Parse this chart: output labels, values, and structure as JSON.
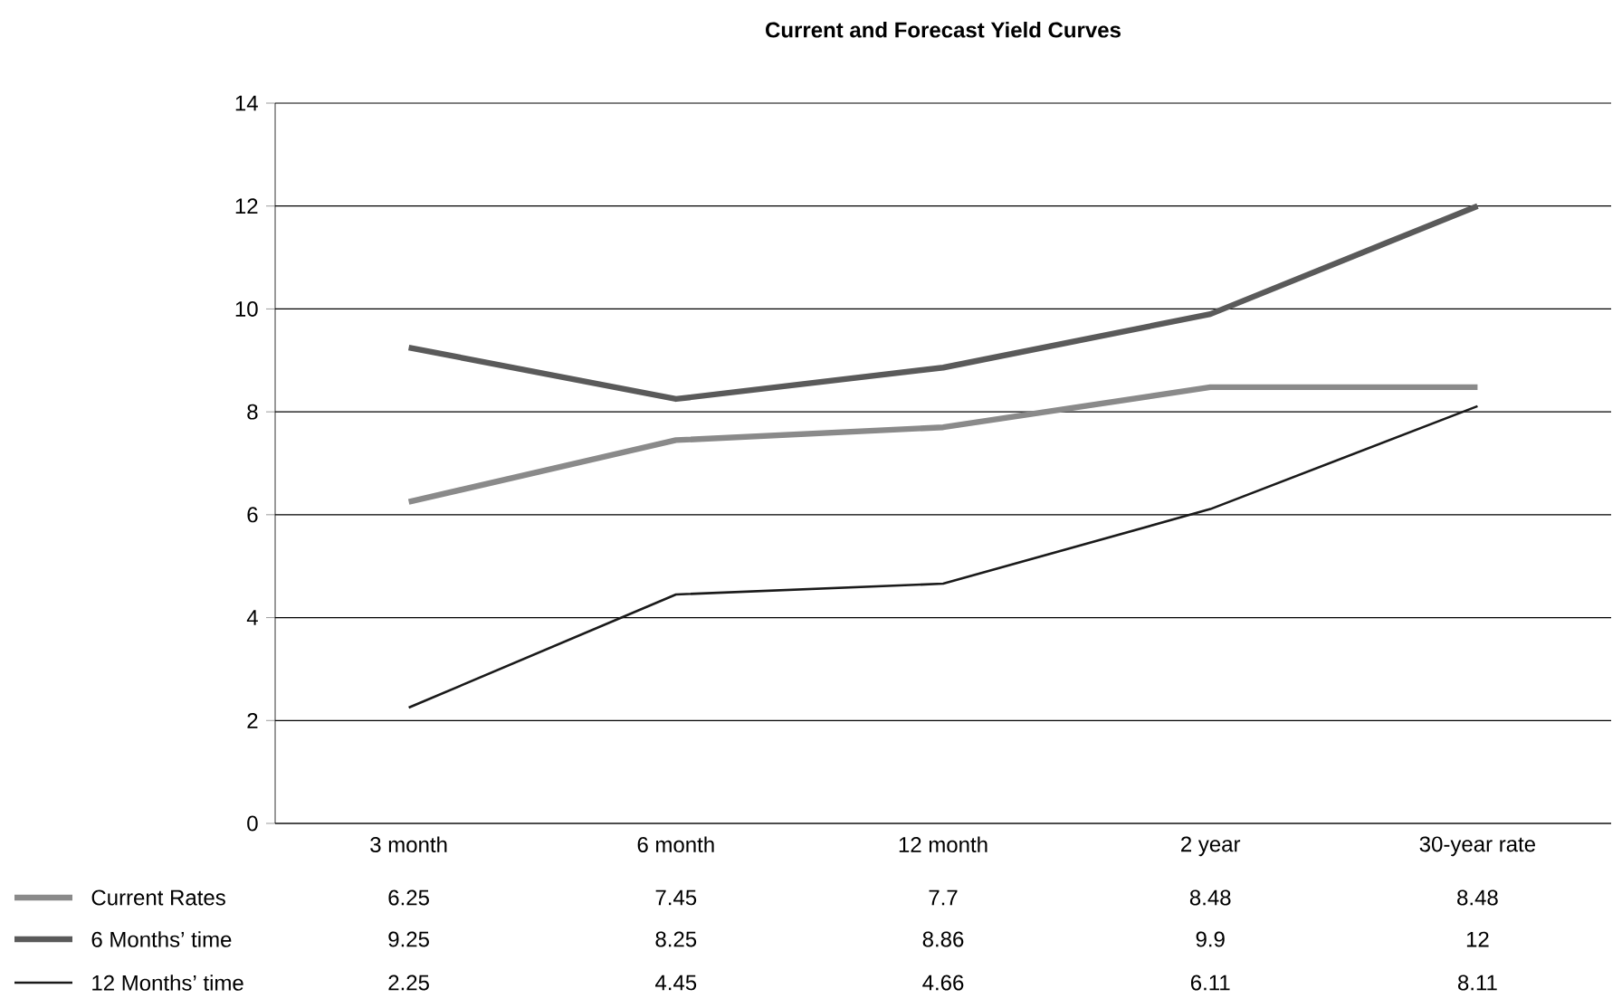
{
  "chart_data": {
    "type": "line",
    "title": "Current and Forecast Yield Curves",
    "categories": [
      "3 month",
      "6 month",
      "12 month",
      "2 year",
      "30-year rate"
    ],
    "series": [
      {
        "name": "Current Rates",
        "color": "#8a8a8a",
        "values": [
          6.25,
          7.45,
          7.7,
          8.48,
          8.48
        ]
      },
      {
        "name": "6 Months’ time",
        "color": "#5a5a5a",
        "values": [
          9.25,
          8.25,
          8.86,
          9.9,
          12
        ]
      },
      {
        "name": "12 Months’ time",
        "color": "#1a1a1a",
        "values": [
          2.25,
          4.45,
          4.66,
          6.11,
          8.11
        ]
      }
    ],
    "ylim": [
      0,
      14
    ],
    "yticks": [
      0,
      2,
      4,
      6,
      8,
      10,
      12,
      14
    ],
    "grid": "y",
    "legend": "bottom",
    "data_labels": true,
    "marker": "none",
    "line_style": "solid"
  }
}
